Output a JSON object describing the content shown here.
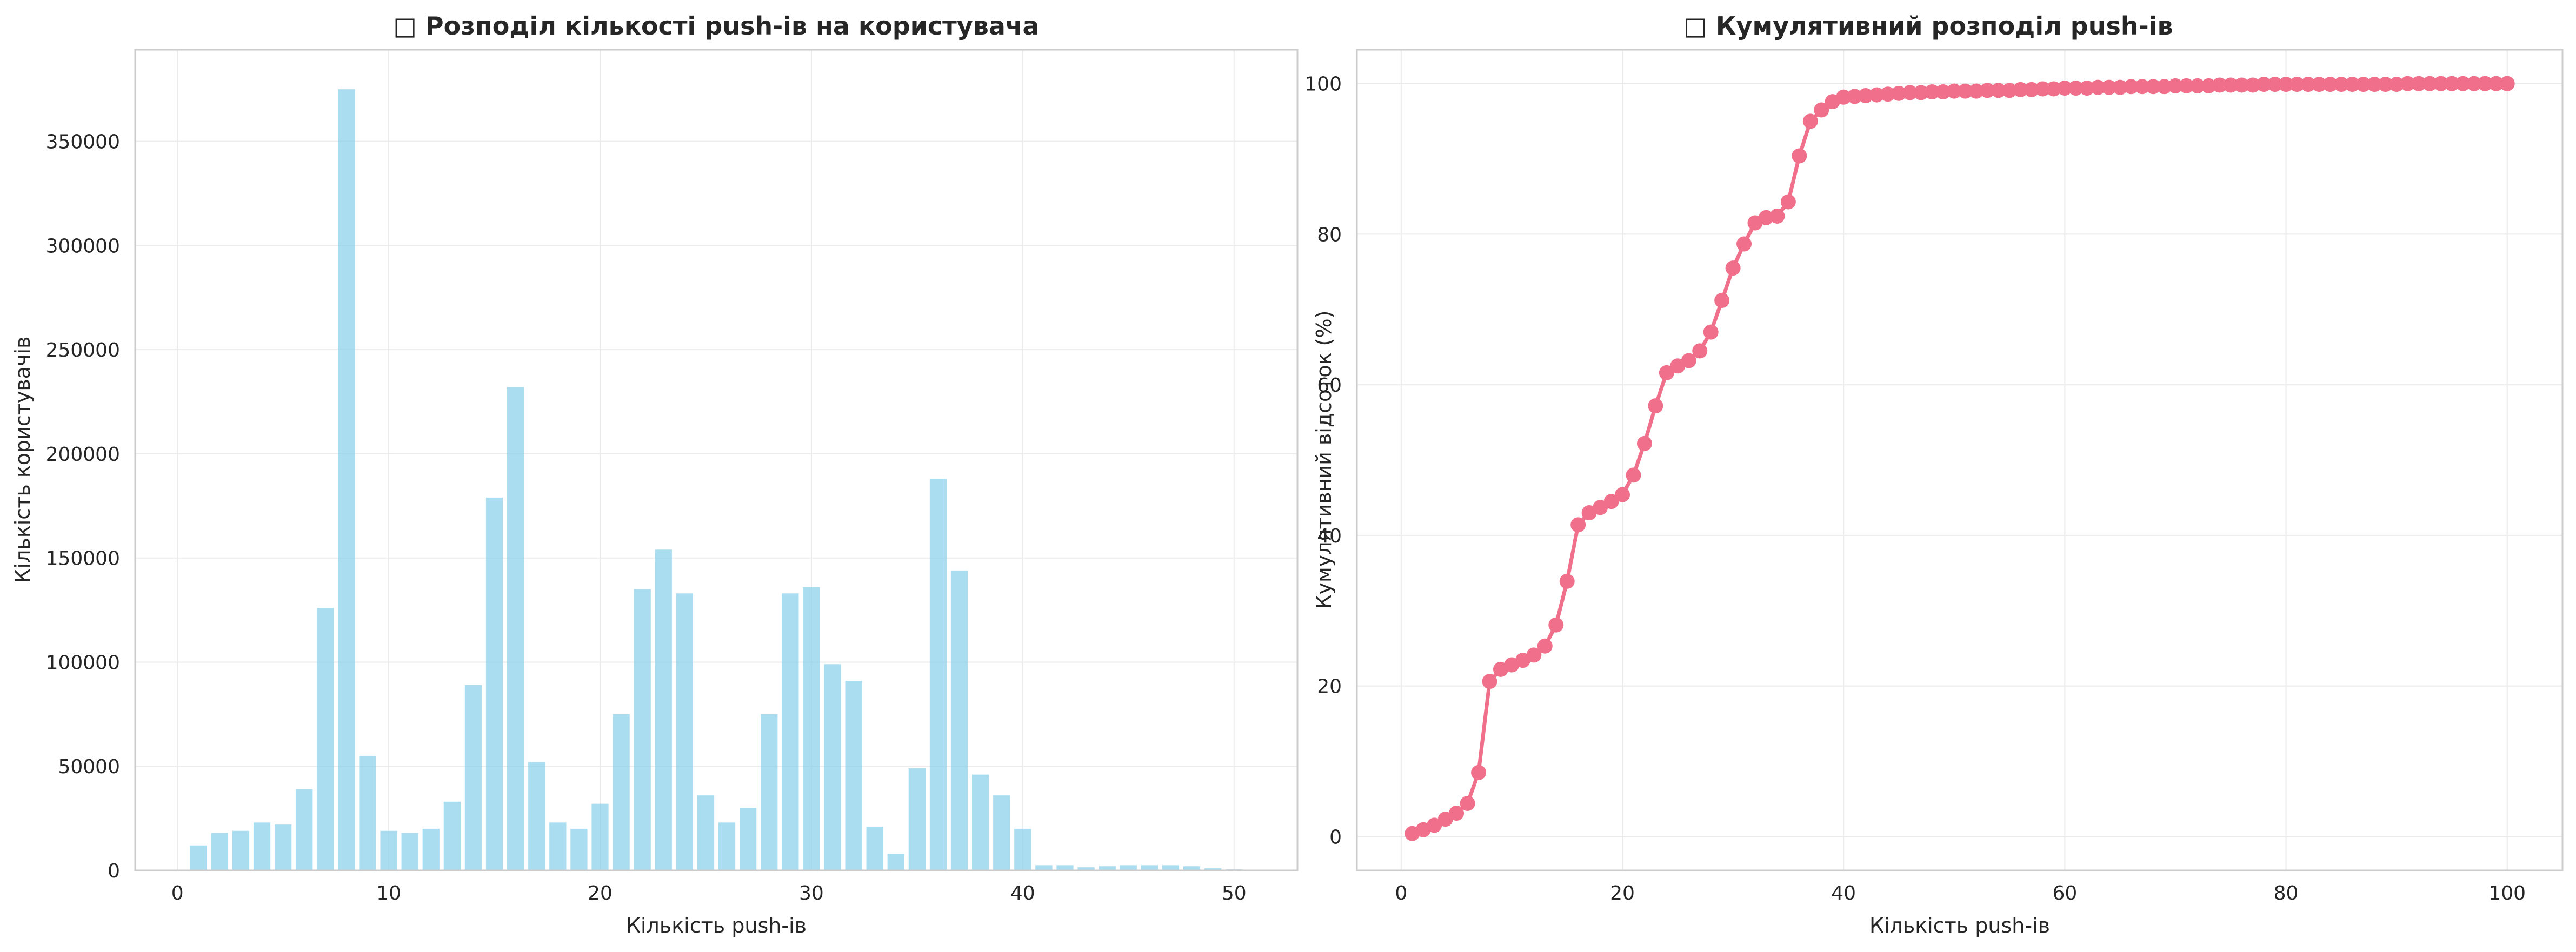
{
  "chart_data": [
    {
      "type": "bar",
      "title": "□ Розподіл кількості push-ів на користувача",
      "xlabel": "Кількість push-ів",
      "ylabel": "Кількість користувачів",
      "xlim": [
        -2,
        53
      ],
      "ylim": [
        0,
        394000
      ],
      "xticks": [
        0,
        10,
        20,
        30,
        40,
        50
      ],
      "yticks": [
        0,
        50000,
        100000,
        150000,
        200000,
        250000,
        300000,
        350000
      ],
      "grid": true,
      "color": "#87ceeb",
      "x": [
        1,
        2,
        3,
        4,
        5,
        6,
        7,
        8,
        9,
        10,
        11,
        12,
        13,
        14,
        15,
        16,
        17,
        18,
        19,
        20,
        21,
        22,
        23,
        24,
        25,
        26,
        27,
        28,
        29,
        30,
        31,
        32,
        33,
        34,
        35,
        36,
        37,
        38,
        39,
        40,
        41,
        42,
        43,
        44,
        45,
        46,
        47,
        48,
        49,
        50
      ],
      "values": [
        12000,
        18000,
        19000,
        23000,
        22000,
        39000,
        126000,
        375000,
        55000,
        19000,
        18000,
        20000,
        33000,
        89000,
        179000,
        232000,
        52000,
        23000,
        20000,
        32000,
        75000,
        135000,
        154000,
        133000,
        36000,
        23000,
        30000,
        75000,
        133000,
        136000,
        99000,
        91000,
        21000,
        8000,
        49000,
        188000,
        144000,
        46000,
        36000,
        20000,
        2500,
        2500,
        1500,
        2000,
        2500,
        2500,
        2500,
        2000,
        1000,
        500
      ]
    },
    {
      "type": "line",
      "title": "□ Кумулятивний розподіл push-ів",
      "xlabel": "Кількість push-ів",
      "ylabel": "Кумулятивний відсоток (%)",
      "xlim": [
        -4,
        105
      ],
      "ylim": [
        -4.5,
        104.5
      ],
      "xticks": [
        0,
        20,
        40,
        60,
        80,
        100
      ],
      "yticks": [
        0,
        20,
        40,
        60,
        80,
        100
      ],
      "grid": true,
      "color": "#f0708c",
      "x_start": 1,
      "x_end": 100,
      "values": [
        0.4,
        0.9,
        1.5,
        2.3,
        3.1,
        4.4,
        8.5,
        20.6,
        22.2,
        22.8,
        23.4,
        24.1,
        25.3,
        28.1,
        33.9,
        41.4,
        43.0,
        43.7,
        44.5,
        45.4,
        48.0,
        52.2,
        57.2,
        61.6,
        62.5,
        63.2,
        64.5,
        67.0,
        71.2,
        75.5,
        78.7,
        81.5,
        82.2,
        82.4,
        84.3,
        90.4,
        95.0,
        96.5,
        97.6,
        98.2,
        98.3,
        98.4,
        98.5,
        98.6,
        98.7,
        98.8,
        98.8,
        98.9,
        98.9,
        99.0,
        99.0,
        99.0,
        99.1,
        99.1,
        99.1,
        99.2,
        99.2,
        99.3,
        99.3,
        99.4,
        99.4,
        99.4,
        99.5,
        99.5,
        99.5,
        99.6,
        99.6,
        99.6,
        99.6,
        99.7,
        99.7,
        99.7,
        99.7,
        99.8,
        99.8,
        99.8,
        99.8,
        99.9,
        99.9,
        99.9,
        99.9,
        99.9,
        99.9,
        99.9,
        99.9,
        99.9,
        99.9,
        99.9,
        99.9,
        99.9,
        100.0,
        100.0,
        100.0,
        100.0,
        100.0,
        100.0,
        100.0,
        100.0,
        100.0,
        100.0
      ]
    }
  ]
}
